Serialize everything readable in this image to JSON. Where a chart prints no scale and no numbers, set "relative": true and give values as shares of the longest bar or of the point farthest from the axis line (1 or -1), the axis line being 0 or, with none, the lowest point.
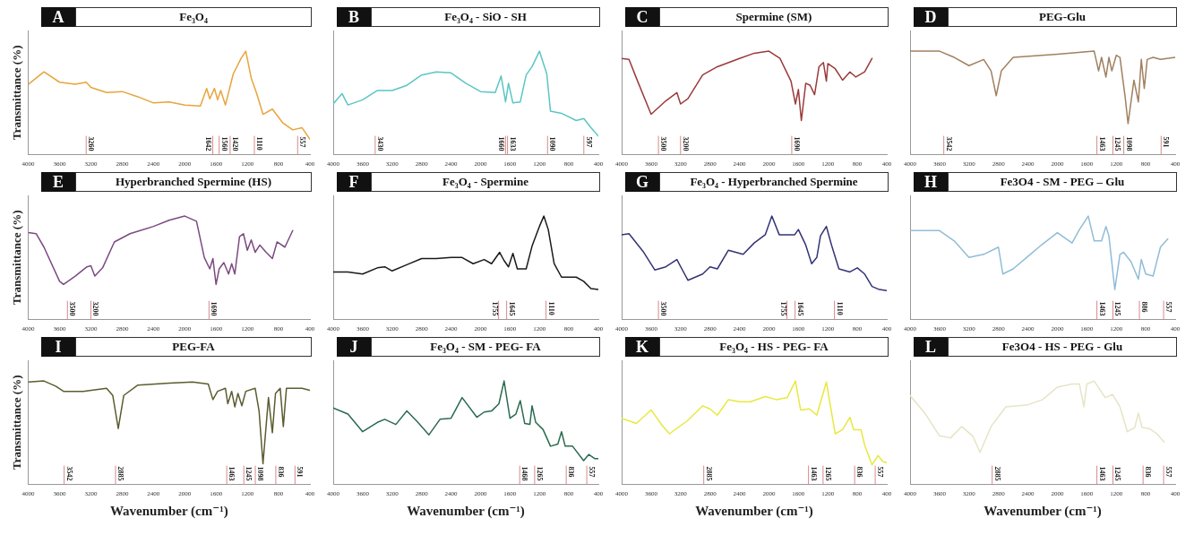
{
  "chart_data": [
    {
      "type": "line",
      "title": "Fe₃O₄",
      "annotations": [
        "A"
      ],
      "ylabel": "Transmittance (%)",
      "relative": true,
      "marker": "none",
      "tick_labels": "x",
      "color": "#e8a43c",
      "xlim": [
        4000,
        400
      ],
      "xticks": [
        4000,
        3600,
        3200,
        2800,
        2400,
        2000,
        1600,
        1200,
        800,
        400
      ],
      "x": [
        4000,
        3800,
        3600,
        3400,
        3260,
        3200,
        3000,
        2800,
        2600,
        2400,
        2200,
        2000,
        1800,
        1720,
        1680,
        1620,
        1580,
        1540,
        1480,
        1380,
        1280,
        1220,
        1150,
        1080,
        1000,
        880,
        750,
        620,
        500,
        400
      ],
      "values": [
        0.68,
        0.8,
        0.7,
        0.68,
        0.7,
        0.65,
        0.6,
        0.61,
        0.56,
        0.5,
        0.51,
        0.48,
        0.47,
        0.64,
        0.54,
        0.64,
        0.53,
        0.62,
        0.48,
        0.78,
        0.93,
        1,
        0.74,
        0.59,
        0.39,
        0.44,
        0.31,
        0.24,
        0.26,
        0.15
      ],
      "ref_lines": [
        {
          "axis": "x",
          "value": 3260,
          "label": "3260"
        },
        {
          "axis": "x",
          "value": 1642,
          "label": "1642"
        },
        {
          "axis": "x",
          "value": 1560,
          "label": "1560"
        },
        {
          "axis": "x",
          "value": 1420,
          "label": "1420"
        },
        {
          "axis": "x",
          "value": 1110,
          "label": "1110"
        },
        {
          "axis": "x",
          "value": 557,
          "label": "557"
        }
      ]
    },
    {
      "type": "line",
      "title": "Fe₃O₄ - SiO - SH",
      "annotations": [
        "B"
      ],
      "relative": true,
      "marker": "none",
      "tick_labels": "x",
      "color": "#5cc5c5",
      "xlim": [
        4000,
        400
      ],
      "xticks": [
        4000,
        3600,
        3200,
        2800,
        2400,
        2000,
        1600,
        1200,
        800,
        400
      ],
      "x": [
        4000,
        3880,
        3800,
        3600,
        3400,
        3200,
        3000,
        2800,
        2600,
        2400,
        2200,
        2000,
        1800,
        1720,
        1660,
        1620,
        1560,
        1460,
        1380,
        1300,
        1200,
        1100,
        1050,
        900,
        700,
        597,
        500,
        400
      ],
      "values": [
        0.49,
        0.59,
        0.48,
        0.53,
        0.62,
        0.62,
        0.67,
        0.77,
        0.8,
        0.79,
        0.69,
        0.61,
        0.6,
        0.76,
        0.51,
        0.69,
        0.5,
        0.51,
        0.77,
        0.85,
        1,
        0.78,
        0.42,
        0.4,
        0.33,
        0.35,
        0.26,
        0.18
      ],
      "ref_lines": [
        {
          "axis": "x",
          "value": 3430,
          "label": "3430"
        },
        {
          "axis": "x",
          "value": 1660,
          "label": "1660"
        },
        {
          "axis": "x",
          "value": 1633,
          "label": "1633"
        },
        {
          "axis": "x",
          "value": 1090,
          "label": "1090"
        },
        {
          "axis": "x",
          "value": 597,
          "label": "597"
        }
      ]
    },
    {
      "type": "line",
      "title": "Spermine (SM)",
      "annotations": [
        "C"
      ],
      "relative": true,
      "marker": "none",
      "tick_labels": "x",
      "color": "#9b3a3a",
      "xlim": [
        4000,
        400
      ],
      "xticks": [
        4000,
        3600,
        3200,
        2800,
        2400,
        2000,
        1600,
        1200,
        800,
        400
      ],
      "x": [
        4000,
        3900,
        3800,
        3600,
        3400,
        3250,
        3200,
        3100,
        2900,
        2700,
        2400,
        2200,
        2000,
        1850,
        1700,
        1640,
        1600,
        1560,
        1500,
        1440,
        1380,
        1320,
        1260,
        1220,
        1200,
        1100,
        1000,
        900,
        820,
        700,
        600
      ],
      "values": [
        0.93,
        0.92,
        0.74,
        0.39,
        0.52,
        0.6,
        0.49,
        0.54,
        0.77,
        0.85,
        0.93,
        0.98,
        1,
        0.93,
        0.71,
        0.49,
        0.63,
        0.33,
        0.69,
        0.67,
        0.58,
        0.85,
        0.89,
        0.71,
        0.88,
        0.83,
        0.72,
        0.8,
        0.75,
        0.8,
        0.93
      ],
      "ref_lines": [
        {
          "axis": "x",
          "value": 3500,
          "label": "3500"
        },
        {
          "axis": "x",
          "value": 3200,
          "label": "3200"
        },
        {
          "axis": "x",
          "value": 1690,
          "label": "1690"
        }
      ]
    },
    {
      "type": "line",
      "title": "PEG-Glu",
      "annotations": [
        "D"
      ],
      "relative": true,
      "marker": "none",
      "tick_labels": "x",
      "color": "#a08060",
      "xlim": [
        4000,
        400
      ],
      "xticks": [
        4000,
        3600,
        3200,
        2800,
        2400,
        2000,
        1600,
        1200,
        800,
        400
      ],
      "x": [
        4000,
        3600,
        3400,
        3200,
        3000,
        2900,
        2830,
        2760,
        2600,
        2000,
        1500,
        1440,
        1400,
        1340,
        1300,
        1260,
        1200,
        1150,
        1080,
        1040,
        960,
        900,
        860,
        820,
        780,
        700,
        600,
        400
      ],
      "values": [
        1,
        1,
        0.94,
        0.86,
        0.92,
        0.81,
        0.57,
        0.81,
        0.94,
        0.97,
        1,
        0.81,
        0.94,
        0.75,
        0.94,
        0.81,
        0.96,
        0.94,
        0.56,
        0.3,
        0.72,
        0.51,
        0.92,
        0.64,
        0.92,
        0.94,
        0.92,
        0.94
      ],
      "ref_lines": [
        {
          "axis": "x",
          "value": 3542,
          "label": "3542"
        },
        {
          "axis": "x",
          "value": 1463,
          "label": "1463"
        },
        {
          "axis": "x",
          "value": 1245,
          "label": "1245"
        },
        {
          "axis": "x",
          "value": 1098,
          "label": "1098"
        },
        {
          "axis": "x",
          "value": 591,
          "label": "591"
        }
      ]
    },
    {
      "type": "line",
      "title": "Hyperbranched Spermine (HS)",
      "annotations": [
        "E"
      ],
      "ylabel": "Transmittance (%)",
      "relative": true,
      "marker": "none",
      "tick_labels": "x",
      "color": "#7b4a80",
      "xlim": [
        4000,
        400
      ],
      "xticks": [
        4000,
        3600,
        3200,
        2800,
        2400,
        2000,
        1600,
        1200,
        800,
        400
      ],
      "x": [
        4000,
        3900,
        3800,
        3600,
        3550,
        3400,
        3250,
        3200,
        3150,
        3050,
        2900,
        2700,
        2400,
        2200,
        2000,
        1850,
        1750,
        1680,
        1640,
        1600,
        1560,
        1500,
        1440,
        1400,
        1360,
        1300,
        1250,
        1200,
        1150,
        1100,
        1040,
        960,
        880,
        820,
        720,
        620
      ],
      "values": [
        0.84,
        0.83,
        0.7,
        0.37,
        0.34,
        0.42,
        0.51,
        0.52,
        0.42,
        0.5,
        0.75,
        0.83,
        0.9,
        0.96,
        1,
        0.95,
        0.6,
        0.49,
        0.59,
        0.34,
        0.49,
        0.55,
        0.44,
        0.54,
        0.44,
        0.8,
        0.83,
        0.67,
        0.77,
        0.65,
        0.72,
        0.65,
        0.59,
        0.75,
        0.7,
        0.86
      ],
      "ref_lines": [
        {
          "axis": "x",
          "value": 3500,
          "label": "3500"
        },
        {
          "axis": "x",
          "value": 3200,
          "label": "3200"
        },
        {
          "axis": "x",
          "value": 1690,
          "label": "1690"
        }
      ]
    },
    {
      "type": "line",
      "title": "Fe₃O₄ - Spermine",
      "annotations": [
        "F"
      ],
      "relative": true,
      "marker": "none",
      "tick_labels": "x",
      "color": "#1a1a1a",
      "xlim": [
        4000,
        400
      ],
      "xticks": [
        4000,
        3600,
        3200,
        2800,
        2400,
        2000,
        1600,
        1200,
        800,
        400
      ],
      "x": [
        4000,
        3800,
        3600,
        3400,
        3300,
        3200,
        3000,
        2800,
        2600,
        2400,
        2250,
        2100,
        1950,
        1850,
        1740,
        1680,
        1620,
        1560,
        1500,
        1380,
        1300,
        1200,
        1140,
        1080,
        1000,
        900,
        700,
        600,
        500,
        400
      ],
      "values": [
        0.46,
        0.46,
        0.44,
        0.5,
        0.51,
        0.47,
        0.53,
        0.59,
        0.59,
        0.6,
        0.6,
        0.54,
        0.58,
        0.54,
        0.65,
        0.57,
        0.51,
        0.64,
        0.49,
        0.49,
        0.71,
        0.9,
        1,
        0.87,
        0.54,
        0.41,
        0.41,
        0.37,
        0.3,
        0.29
      ],
      "ref_lines": [
        {
          "axis": "x",
          "value": 1755,
          "label": "1755"
        },
        {
          "axis": "x",
          "value": 1645,
          "label": "1645"
        },
        {
          "axis": "x",
          "value": 1110,
          "label": "1110"
        }
      ]
    },
    {
      "type": "line",
      "title": "Fe₃O₄ - Hyperbranched Spermine",
      "annotations": [
        "G"
      ],
      "relative": true,
      "marker": "none",
      "tick_labels": "x",
      "color": "#333377",
      "xlim": [
        4000,
        400
      ],
      "xticks": [
        4000,
        3600,
        3200,
        2800,
        2400,
        2000,
        1600,
        1200,
        800,
        400
      ],
      "x": [
        4000,
        3900,
        3700,
        3550,
        3400,
        3250,
        3100,
        2900,
        2800,
        2700,
        2550,
        2350,
        2200,
        2050,
        1960,
        1860,
        1760,
        1650,
        1600,
        1500,
        1420,
        1350,
        1300,
        1220,
        1150,
        1050,
        900,
        800,
        700,
        600,
        500,
        400
      ],
      "values": [
        0.82,
        0.83,
        0.65,
        0.48,
        0.51,
        0.58,
        0.38,
        0.44,
        0.51,
        0.49,
        0.67,
        0.63,
        0.74,
        0.82,
        1,
        0.82,
        0.82,
        0.82,
        0.87,
        0.72,
        0.54,
        0.6,
        0.81,
        0.9,
        0.72,
        0.49,
        0.46,
        0.5,
        0.44,
        0.32,
        0.29,
        0.28
      ],
      "ref_lines": [
        {
          "axis": "x",
          "value": 3500,
          "label": "3500"
        },
        {
          "axis": "x",
          "value": 1755,
          "label": "1755"
        },
        {
          "axis": "x",
          "value": 1645,
          "label": "1645"
        },
        {
          "axis": "x",
          "value": 1110,
          "label": "1110"
        }
      ]
    },
    {
      "type": "line",
      "title": "Fe3O4 - SM - PEG – Glu",
      "annotations": [
        "H"
      ],
      "relative": true,
      "marker": "none",
      "tick_labels": "x",
      "color": "#90bcd8",
      "xlim": [
        4000,
        400
      ],
      "xticks": [
        4000,
        3600,
        3200,
        2800,
        2400,
        2000,
        1600,
        1200,
        800,
        400
      ],
      "x": [
        4000,
        3600,
        3400,
        3200,
        3000,
        2800,
        2740,
        2600,
        2400,
        2200,
        2000,
        1800,
        1700,
        1580,
        1500,
        1400,
        1340,
        1300,
        1220,
        1150,
        1100,
        1000,
        900,
        860,
        800,
        700,
        600,
        500
      ],
      "values": [
        0.86,
        0.86,
        0.76,
        0.6,
        0.63,
        0.7,
        0.44,
        0.49,
        0.61,
        0.73,
        0.84,
        0.74,
        0.87,
        1,
        0.76,
        0.76,
        0.9,
        0.81,
        0.29,
        0.63,
        0.65,
        0.56,
        0.39,
        0.58,
        0.44,
        0.42,
        0.7,
        0.78
      ],
      "ref_lines": [
        {
          "axis": "x",
          "value": 1463,
          "label": "1463"
        },
        {
          "axis": "x",
          "value": 1245,
          "label": "1245"
        },
        {
          "axis": "x",
          "value": 886,
          "label": "886"
        },
        {
          "axis": "x",
          "value": 557,
          "label": "557"
        }
      ]
    },
    {
      "type": "line",
      "title": "PEG-FA",
      "annotations": [
        "I"
      ],
      "ylabel": "Transmittance (%)",
      "xlabel": "Wavenumber (cm⁻¹)",
      "relative": true,
      "marker": "none",
      "tick_labels": "x",
      "color": "#5c5c30",
      "xlim": [
        4000,
        400
      ],
      "xticks": [
        4000,
        3600,
        3200,
        2800,
        2400,
        2000,
        1600,
        1200,
        800,
        400
      ],
      "x": [
        4000,
        3800,
        3650,
        3550,
        3300,
        3000,
        2920,
        2850,
        2780,
        2600,
        2200,
        1900,
        1700,
        1640,
        1580,
        1480,
        1450,
        1400,
        1360,
        1320,
        1270,
        1220,
        1100,
        1050,
        1000,
        930,
        880,
        840,
        780,
        740,
        700,
        500,
        400
      ],
      "values": [
        0.99,
        1,
        0.95,
        0.9,
        0.9,
        0.93,
        0.86,
        0.54,
        0.86,
        0.96,
        0.98,
        0.99,
        0.97,
        0.82,
        0.9,
        0.93,
        0.78,
        0.9,
        0.75,
        0.88,
        0.76,
        0.9,
        0.93,
        0.71,
        0.2,
        0.84,
        0.5,
        0.88,
        0.93,
        0.56,
        0.93,
        0.93,
        0.91
      ],
      "ref_lines": [
        {
          "axis": "x",
          "value": 3542,
          "label": "3542"
        },
        {
          "axis": "x",
          "value": 2885,
          "label": "2885"
        },
        {
          "axis": "x",
          "value": 1463,
          "label": "1463"
        },
        {
          "axis": "x",
          "value": 1245,
          "label": "1245"
        },
        {
          "axis": "x",
          "value": 1098,
          "label": "1098"
        },
        {
          "axis": "x",
          "value": 836,
          "label": "836"
        },
        {
          "axis": "x",
          "value": 591,
          "label": "591"
        }
      ]
    },
    {
      "type": "line",
      "title": "Fe₃O₄ - SM - PEG- FA",
      "annotations": [
        "J"
      ],
      "xlabel": "Wavenumber (cm⁻¹)",
      "relative": true,
      "marker": "none",
      "tick_labels": "x",
      "color": "#2a6a50",
      "xlim": [
        4000,
        400
      ],
      "xticks": [
        4000,
        3600,
        3200,
        2800,
        2400,
        2000,
        1600,
        1200,
        800,
        400
      ],
      "x": [
        4000,
        3800,
        3600,
        3400,
        3300,
        3150,
        3000,
        2850,
        2700,
        2550,
        2400,
        2250,
        2050,
        1950,
        1850,
        1750,
        1680,
        1600,
        1520,
        1460,
        1400,
        1330,
        1300,
        1250,
        1150,
        1050,
        950,
        900,
        850,
        750,
        600,
        530,
        450,
        400
      ],
      "values": [
        0.74,
        0.68,
        0.51,
        0.6,
        0.63,
        0.58,
        0.71,
        0.6,
        0.48,
        0.63,
        0.64,
        0.84,
        0.65,
        0.7,
        0.71,
        0.78,
        1,
        0.64,
        0.68,
        0.81,
        0.59,
        0.58,
        0.76,
        0.6,
        0.53,
        0.37,
        0.39,
        0.51,
        0.37,
        0.37,
        0.23,
        0.29,
        0.25,
        0.25
      ],
      "ref_lines": [
        {
          "axis": "x",
          "value": 1468,
          "label": "1468"
        },
        {
          "axis": "x",
          "value": 1265,
          "label": "1265"
        },
        {
          "axis": "x",
          "value": 836,
          "label": "836"
        },
        {
          "axis": "x",
          "value": 557,
          "label": "557"
        }
      ]
    },
    {
      "type": "line",
      "title": "Fe₃O₄ - HS - PEG- FA",
      "annotations": [
        "K"
      ],
      "xlabel": "Wavenumber (cm⁻¹)",
      "relative": true,
      "marker": "none",
      "tick_labels": "x",
      "color": "#e8e840",
      "xlim": [
        4000,
        400
      ],
      "xticks": [
        4000,
        3600,
        3200,
        2800,
        2400,
        2000,
        1600,
        1200,
        800,
        400
      ],
      "x": [
        4000,
        3800,
        3600,
        3450,
        3350,
        3100,
        2900,
        2800,
        2700,
        2550,
        2400,
        2250,
        2050,
        1900,
        1750,
        1640,
        1570,
        1450,
        1350,
        1220,
        1100,
        1000,
        900,
        850,
        750,
        700,
        600,
        520,
        450,
        400
      ],
      "values": [
        0.64,
        0.59,
        0.72,
        0.57,
        0.49,
        0.62,
        0.76,
        0.73,
        0.67,
        0.82,
        0.8,
        0.8,
        0.85,
        0.82,
        0.84,
        1,
        0.72,
        0.73,
        0.67,
        0.99,
        0.49,
        0.53,
        0.65,
        0.53,
        0.53,
        0.38,
        0.19,
        0.28,
        0.22,
        0.21
      ],
      "ref_lines": [
        {
          "axis": "x",
          "value": 2885,
          "label": "2885"
        },
        {
          "axis": "x",
          "value": 1463,
          "label": "1463"
        },
        {
          "axis": "x",
          "value": 1265,
          "label": "1265"
        },
        {
          "axis": "x",
          "value": 836,
          "label": "836"
        },
        {
          "axis": "x",
          "value": 557,
          "label": "557"
        }
      ]
    },
    {
      "type": "line",
      "title": "Fe3O4 - HS - PEG - Glu",
      "annotations": [
        "L"
      ],
      "xlabel": "Wavenumber (cm⁻¹)",
      "relative": true,
      "marker": "none",
      "tick_labels": "x",
      "color": "#e6e4c4",
      "xlim": [
        4000,
        400
      ],
      "xticks": [
        4000,
        3600,
        3200,
        2800,
        2400,
        2000,
        1600,
        1200,
        800,
        400
      ],
      "x": [
        4000,
        3800,
        3600,
        3450,
        3300,
        3150,
        3050,
        2900,
        2700,
        2400,
        2200,
        2000,
        1800,
        1700,
        1640,
        1600,
        1500,
        1350,
        1250,
        1150,
        1050,
        950,
        900,
        850,
        750,
        650,
        550
      ],
      "values": [
        0.86,
        0.69,
        0.47,
        0.45,
        0.56,
        0.47,
        0.31,
        0.56,
        0.75,
        0.77,
        0.82,
        0.94,
        0.97,
        0.97,
        0.75,
        0.97,
        1,
        0.84,
        0.87,
        0.75,
        0.51,
        0.55,
        0.69,
        0.55,
        0.54,
        0.49,
        0.41
      ],
      "ref_lines": [
        {
          "axis": "x",
          "value": 2885,
          "label": "2885"
        },
        {
          "axis": "x",
          "value": 1463,
          "label": "1463"
        },
        {
          "axis": "x",
          "value": 1245,
          "label": "1245"
        },
        {
          "axis": "x",
          "value": 836,
          "label": "836"
        },
        {
          "axis": "x",
          "value": 557,
          "label": "557"
        }
      ]
    }
  ]
}
